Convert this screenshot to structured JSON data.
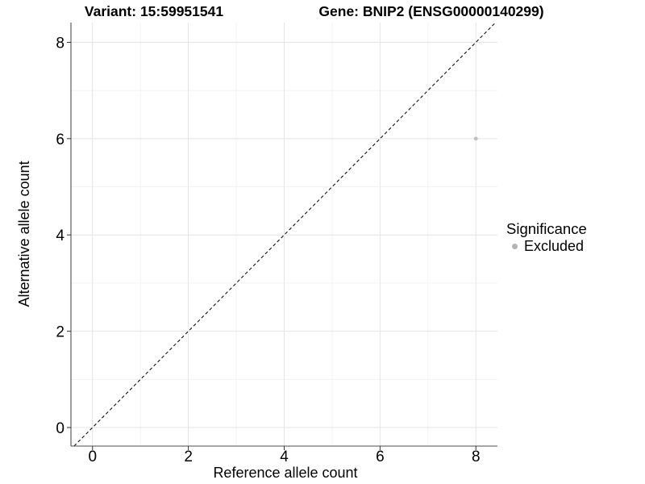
{
  "chart_data": {
    "type": "scatter",
    "title_parts": [
      "Variant: 15:59951541",
      "Gene: BNIP2 (ENSG00000140299)"
    ],
    "xlabel": "Reference allele count",
    "ylabel": "Alternative allele count",
    "xlim": [
      -0.45,
      8.45
    ],
    "ylim": [
      -0.385,
      8.41
    ],
    "xticks": [
      0,
      2,
      4,
      6,
      8
    ],
    "yticks": [
      0,
      2,
      4,
      6,
      8
    ],
    "xticks_minor": [
      1,
      3,
      5,
      7
    ],
    "yticks_minor": [
      1,
      3,
      5,
      7
    ],
    "grid": true,
    "legend_position": "right",
    "reference_line": {
      "kind": "identity",
      "style": "dashed",
      "color": "#111111"
    },
    "series": [
      {
        "name": "Excluded",
        "color": "#bfbfbf",
        "points": [
          {
            "x": 8,
            "y": 6
          }
        ]
      }
    ],
    "legend": {
      "title": "Significance",
      "entries": [
        {
          "label": "Excluded",
          "color": "#b3b3b3"
        }
      ]
    },
    "colors": {
      "background": "#ffffff",
      "grid_major": "#e4e4e4",
      "grid_minor": "#f1f1f1",
      "axis_line": "#4d4d4d",
      "tick_mark": "#333333",
      "text": "#000000",
      "point": "#bfbfbf"
    }
  }
}
